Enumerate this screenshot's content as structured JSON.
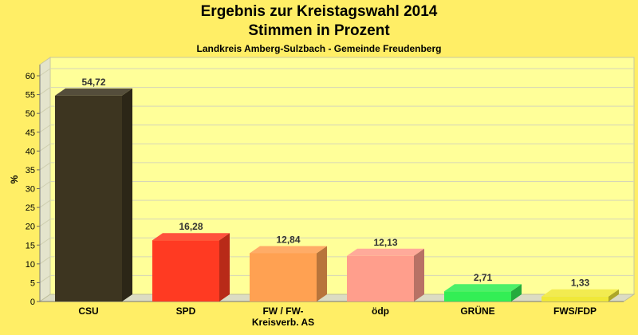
{
  "chart_data": {
    "type": "bar",
    "title": "Ergebnis zur Kreistagswahl 2014",
    "subtitle": "Stimmen in Prozent",
    "caption": "Landkreis Amberg-Sulzbach - Gemeinde Freudenberg",
    "ylabel": "%",
    "ylim": [
      0,
      60
    ],
    "yticks": [
      0,
      5,
      10,
      15,
      20,
      25,
      30,
      35,
      40,
      45,
      50,
      55,
      60
    ],
    "grid": true,
    "categories": [
      "CSU",
      "SPD",
      "FW / FW-\nKreisverb. AS",
      "ödp",
      "GRÜNE",
      "FWS/FDP"
    ],
    "values": [
      54.72,
      16.28,
      12.84,
      12.13,
      2.71,
      1.33
    ],
    "value_labels": [
      "54,72",
      "16,28",
      "12,84",
      "12,13",
      "2,71",
      "1,33"
    ],
    "colors": [
      "#3d3520",
      "#ff3a22",
      "#ffa152",
      "#ff9e8c",
      "#33ee55",
      "#f0e838"
    ]
  }
}
